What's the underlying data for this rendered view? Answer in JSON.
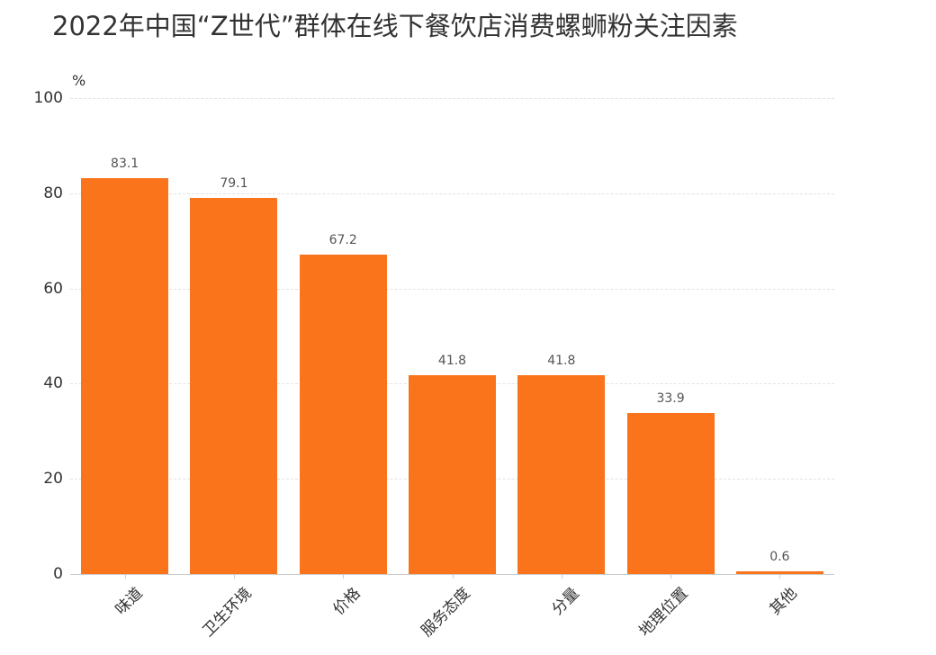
{
  "chart_data": {
    "type": "bar",
    "title": "2022年中国“Z世代”群体在线下餐饮店消费螺蛳粉关注因素",
    "xlabel": "",
    "ylabel": "%",
    "ylim": [
      0,
      100
    ],
    "yticks": [
      0,
      20,
      40,
      60,
      80,
      100
    ],
    "grid": true,
    "legend": null,
    "bar_color": "#FA741C",
    "categories": [
      "味道",
      "卫生环境",
      "价格",
      "服务态度",
      "分量",
      "地理位置",
      "其他"
    ],
    "values": [
      83.1,
      79.1,
      67.2,
      41.8,
      41.8,
      33.9,
      0.6
    ],
    "value_labels": [
      "83.1",
      "79.1",
      "67.2",
      "41.8",
      "41.8",
      "33.9",
      "0.6"
    ]
  },
  "header": {
    "title": "2022年中国“Z世代”群体在线下餐饮店消费螺蛳粉关注因素"
  },
  "axis": {
    "y_unit": "%",
    "y_ticks": [
      "0",
      "20",
      "40",
      "60",
      "80",
      "100"
    ]
  }
}
